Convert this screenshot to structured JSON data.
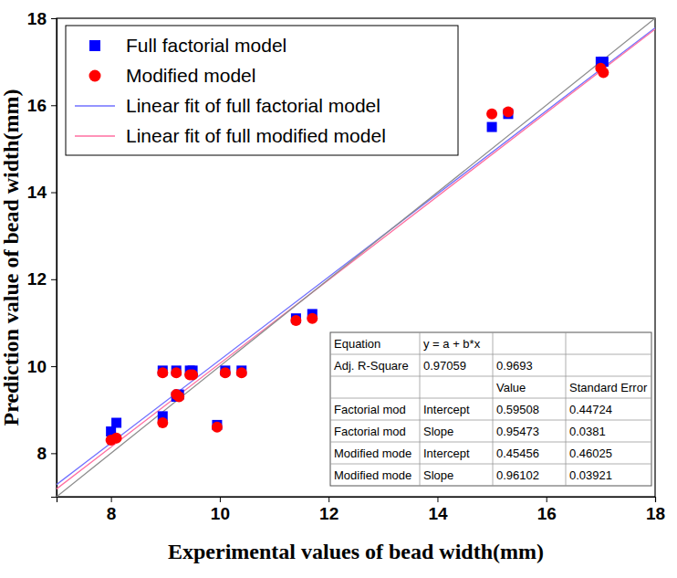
{
  "chart_data": {
    "type": "scatter",
    "x_label": "Experimental values of bead width(mm)",
    "y_label": "Prediction value of bead width(mm)",
    "xlim": [
      7,
      18
    ],
    "ylim": [
      7,
      18
    ],
    "xticks": [
      8,
      10,
      12,
      14,
      16,
      18
    ],
    "yticks": [
      8,
      10,
      12,
      14,
      16,
      18
    ],
    "legend": "upper left",
    "grid": false,
    "series": [
      {
        "name": "Full factorial model",
        "type": "scatter",
        "marker": "square",
        "color": "#0000ff",
        "x": [
          8.0,
          8.1,
          8.95,
          8.95,
          9.2,
          9.2,
          9.25,
          9.45,
          9.5,
          9.95,
          10.1,
          10.4,
          11.4,
          11.7,
          15.0,
          15.3,
          17.0,
          17.05
        ],
        "values": [
          8.5,
          8.7,
          9.9,
          8.85,
          9.3,
          9.9,
          9.35,
          9.9,
          9.9,
          8.65,
          9.9,
          9.9,
          11.1,
          11.2,
          15.5,
          15.8,
          17.0,
          17.0
        ]
      },
      {
        "name": "Modified model",
        "type": "scatter",
        "marker": "circle",
        "color": "#ff0000",
        "x": [
          8.0,
          8.1,
          8.95,
          8.95,
          9.2,
          9.2,
          9.25,
          9.45,
          9.5,
          9.95,
          10.1,
          10.4,
          11.4,
          11.7,
          15.0,
          15.3,
          17.0,
          17.05
        ],
        "values": [
          8.3,
          8.35,
          9.85,
          8.7,
          9.35,
          9.85,
          9.3,
          9.8,
          9.8,
          8.6,
          9.85,
          9.85,
          11.05,
          11.1,
          15.8,
          15.85,
          16.85,
          16.75
        ]
      },
      {
        "name": "Linear fit of full factorial model",
        "type": "line",
        "line_style": "solid",
        "color": "#7070ff",
        "x": [
          7,
          18
        ],
        "values": [
          7.28,
          17.78
        ]
      },
      {
        "name": "Linear fit of full modified model",
        "type": "line",
        "line_style": "solid",
        "color": "#ff6fa0",
        "x": [
          7,
          18
        ],
        "values": [
          7.18,
          17.75
        ]
      },
      {
        "type": "line",
        "line_style": "solid",
        "color": "#8c8c8c",
        "x": [
          7,
          18
        ],
        "values": [
          7,
          18
        ]
      }
    ],
    "table": {
      "rows": [
        [
          "Equation",
          "y = a + b*x",
          null,
          null
        ],
        [
          "Adj. R-Square",
          0.97059,
          0.9693,
          null
        ],
        [
          null,
          null,
          "Value",
          "Standard Error"
        ],
        [
          "Factorial mod",
          "Intercept",
          0.59508,
          0.44724
        ],
        [
          "Factorial mod",
          "Slope",
          0.95473,
          0.0381
        ],
        [
          "Modified mode",
          "Intercept",
          0.45456,
          0.46025
        ],
        [
          "Modified mode",
          "Slope",
          0.96102,
          0.03921
        ]
      ]
    }
  }
}
